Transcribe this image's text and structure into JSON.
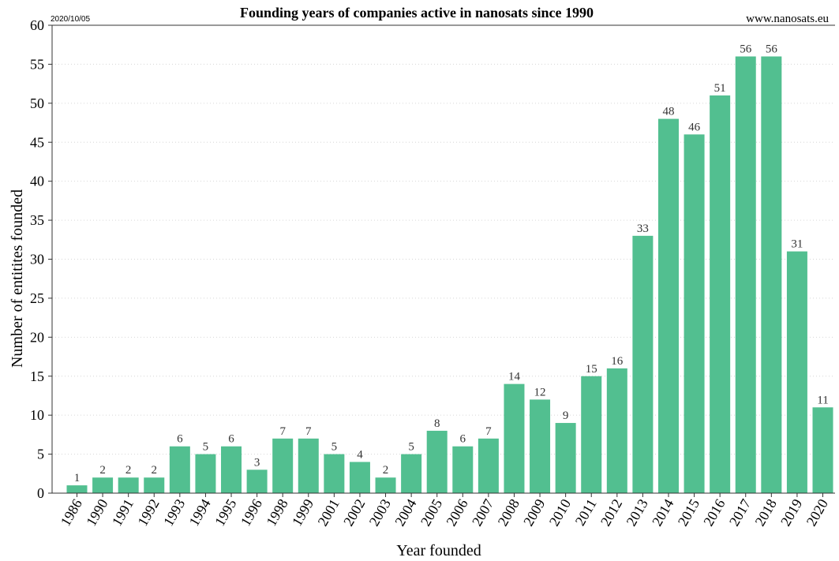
{
  "header": {
    "date_stamp": "2020/10/05",
    "title": "Founding years of companies active in nanosats since 1990",
    "source": "www.nanosats.eu"
  },
  "colors": {
    "bar": "#52bf90",
    "grid": "#d6d6d6",
    "axis": "#333333",
    "label": "#333333",
    "stamp": "#999999"
  },
  "chart_data": {
    "type": "bar",
    "title": "Founding years of companies active in nanosats since 1990",
    "xlabel": "Year founded",
    "ylabel": "Number of entitites founded",
    "ylim": [
      0,
      60
    ],
    "yticks": [
      0,
      5,
      10,
      15,
      20,
      25,
      30,
      35,
      40,
      45,
      50,
      55,
      60
    ],
    "grid": "horizontal dotted",
    "legend": "none",
    "categories": [
      "1986",
      "1990",
      "1991",
      "1992",
      "1993",
      "1994",
      "1995",
      "1996",
      "1998",
      "1999",
      "2001",
      "2002",
      "2003",
      "2004",
      "2005",
      "2006",
      "2007",
      "2008",
      "2009",
      "2010",
      "2011",
      "2012",
      "2013",
      "2014",
      "2015",
      "2016",
      "2017",
      "2018",
      "2019",
      "2020"
    ],
    "values": [
      1,
      2,
      2,
      2,
      6,
      5,
      6,
      3,
      7,
      7,
      5,
      4,
      2,
      5,
      8,
      6,
      7,
      14,
      12,
      9,
      15,
      16,
      33,
      48,
      46,
      51,
      56,
      56,
      31,
      11
    ]
  }
}
